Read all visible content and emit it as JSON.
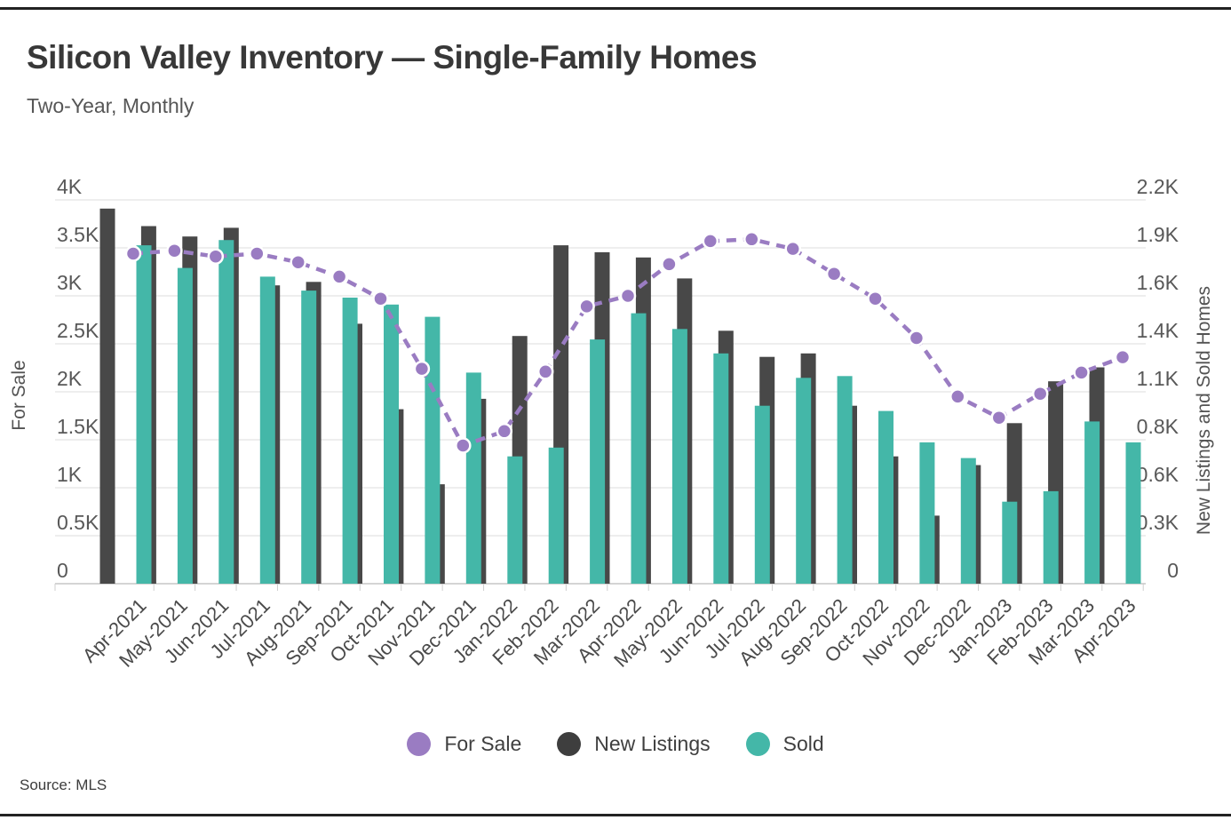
{
  "page": {
    "title": "Silicon Valley Inventory — Single-Family Homes",
    "subtitle": "Two-Year, Monthly",
    "source": "Source: MLS"
  },
  "colors": {
    "for_sale_purple": "#9a7cc2",
    "new_listings_dark": "#484848",
    "sold_teal": "#44b7a8",
    "gridline": "#dcdcdc",
    "axis_line": "#c6c6c6",
    "tick_text": "#585858",
    "border_bar": "#222222"
  },
  "chart_data": {
    "type": "bar",
    "subtype": "grouped bars with overlaid dashed line (dual axis)",
    "title": "Silicon Valley Inventory — Single-Family Homes",
    "subtitle": "Two-Year, Monthly",
    "source": "Source: MLS",
    "grid": "horizontal gridlines on",
    "legend_position": "bottom center",
    "categories": [
      "Apr-2021",
      "May-2021",
      "Jun-2021",
      "Jul-2021",
      "Aug-2021",
      "Sep-2021",
      "Oct-2021",
      "Nov-2021",
      "Dec-2021",
      "Jan-2022",
      "Feb-2022",
      "Mar-2022",
      "Apr-2022",
      "May-2022",
      "Jun-2022",
      "Jul-2022",
      "Aug-2022",
      "Sep-2022",
      "Oct-2022",
      "Nov-2022",
      "Dec-2022",
      "Jan-2023",
      "Feb-2023",
      "Mar-2023",
      "Apr-2023"
    ],
    "series": [
      {
        "name": "For Sale",
        "type": "line",
        "style": "dashed with dot markers",
        "axis": "left",
        "color": "#9a7cc2",
        "values": [
          3440,
          3470,
          3410,
          3440,
          3350,
          3200,
          2970,
          2240,
          1440,
          1590,
          2210,
          2890,
          3000,
          3330,
          3570,
          3590,
          3490,
          3230,
          2970,
          2560,
          1950,
          1730,
          1980,
          2200,
          2360
        ]
      },
      {
        "name": "New Listings",
        "type": "bar",
        "axis": "right",
        "color": "#484848",
        "values": [
          2150,
          2050,
          1990,
          2040,
          1710,
          1730,
          1490,
          1000,
          570,
          1060,
          1420,
          1940,
          1900,
          1870,
          1750,
          1450,
          1300,
          1320,
          1020,
          730,
          390,
          680,
          920,
          1160,
          1240
        ]
      },
      {
        "name": "Sold",
        "type": "bar",
        "axis": "right",
        "color": "#44b7a8",
        "values": [
          1940,
          1810,
          1970,
          1760,
          1680,
          1640,
          1600,
          1530,
          1210,
          730,
          780,
          1400,
          1550,
          1460,
          1320,
          1020,
          1180,
          1190,
          990,
          810,
          720,
          470,
          530,
          930,
          810
        ]
      }
    ],
    "left_axis": {
      "title": "For Sale",
      "max": 4000,
      "min": 0,
      "tick_labels": [
        "4K",
        "3.5K",
        "3K",
        "2.5K",
        "2K",
        "1.5K",
        "1K",
        "0.5K",
        "0"
      ],
      "tick_values": [
        4000,
        3500,
        3000,
        2500,
        2000,
        1500,
        1000,
        500,
        0
      ]
    },
    "right_axis": {
      "title": "New Listings and Sold Homes",
      "max": 2200,
      "min": 0,
      "tick_labels": [
        "2.2K",
        "1.9K",
        "1.6K",
        "1.4K",
        "1.1K",
        "0.8K",
        "0.6K",
        "0.3K",
        "0"
      ],
      "tick_values": [
        2200,
        1925,
        1650,
        1375,
        1100,
        825,
        550,
        275,
        0
      ]
    }
  }
}
